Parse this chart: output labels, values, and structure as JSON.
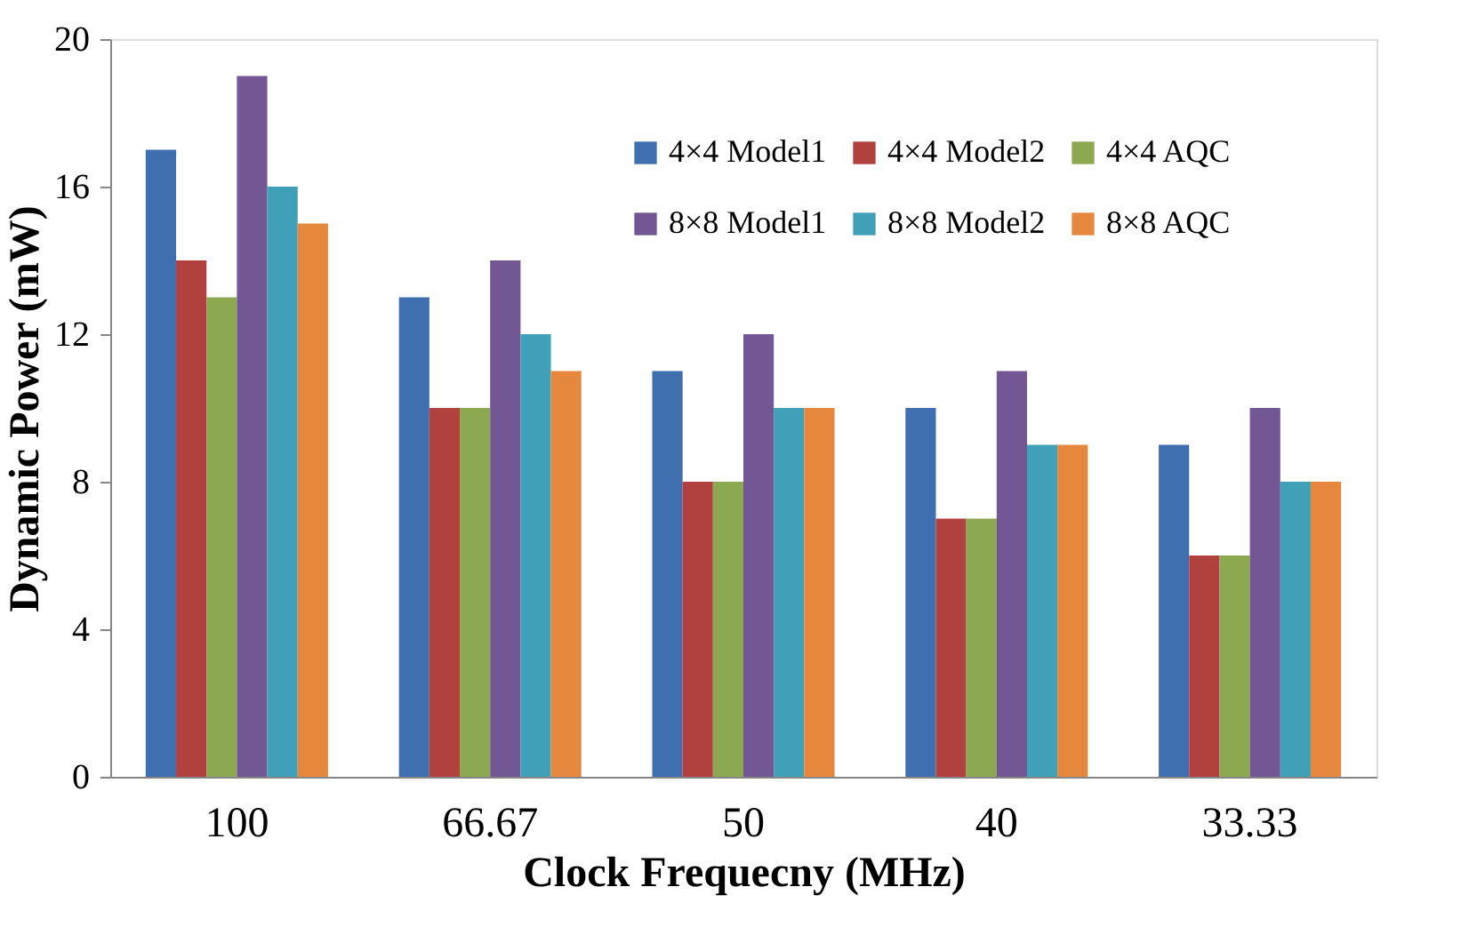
{
  "chart_data": {
    "type": "bar",
    "xlabel": "Clock Frequecny (MHz)",
    "ylabel": "Dynamic Power (mW)",
    "categories": [
      "100",
      "66.67",
      "50",
      "40",
      "33.33"
    ],
    "series": [
      {
        "name": "4×4 Model1",
        "color": "#3f6fae",
        "values": [
          17,
          13,
          11,
          10,
          9
        ]
      },
      {
        "name": "4×4 Model2",
        "color": "#b0413e",
        "values": [
          14,
          10,
          8,
          7,
          6
        ]
      },
      {
        "name": "4×4 AQC",
        "color": "#8ca850",
        "values": [
          13,
          10,
          8,
          7,
          6
        ]
      },
      {
        "name": "8×8 Model1",
        "color": "#735794",
        "values": [
          19,
          14,
          12,
          11,
          10
        ]
      },
      {
        "name": "8×8 Model2",
        "color": "#3fa0b8",
        "values": [
          16,
          12,
          10,
          9,
          8
        ]
      },
      {
        "name": "8×8 AQC",
        "color": "#e5883e",
        "values": [
          15,
          11,
          10,
          9,
          8
        ]
      }
    ],
    "ylim": [
      0,
      20
    ],
    "yticks": [
      0,
      4,
      8,
      12,
      16,
      20
    ],
    "grid": false,
    "legend": "top right"
  }
}
